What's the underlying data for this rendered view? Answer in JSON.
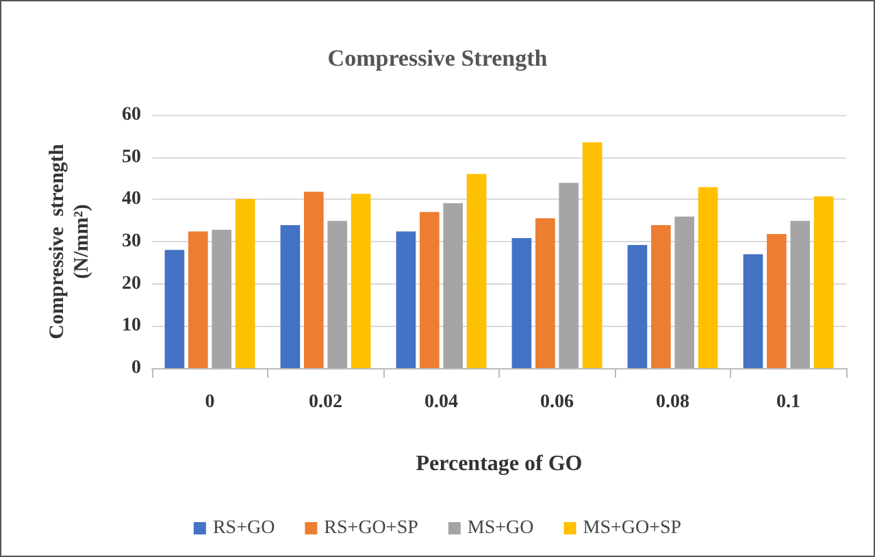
{
  "chart_data": {
    "type": "bar",
    "title": "Compressive Strength",
    "xlabel": "Percentage of GO",
    "ylabel": "Compressive  strength\n(N/mm²)",
    "categories": [
      "0",
      "0.02",
      "0.04",
      "0.06",
      "0.08",
      "0.1"
    ],
    "series": [
      {
        "name": "RS+GO",
        "color": "#4472c4",
        "values": [
          28,
          33.9,
          32.4,
          30.8,
          29.2,
          27
        ]
      },
      {
        "name": "RS+GO+SP",
        "color": "#ed7d31",
        "values": [
          32.4,
          41.8,
          37,
          35.5,
          33.9,
          31.8
        ]
      },
      {
        "name": "MS+GO",
        "color": "#a5a5a5",
        "values": [
          32.8,
          34.9,
          39.1,
          43.9,
          35.9,
          34.9
        ]
      },
      {
        "name": "MS+GO+SP",
        "color": "#ffc000",
        "values": [
          40.1,
          41.3,
          46,
          53.5,
          42.9,
          40.7
        ]
      }
    ],
    "ylim": [
      0,
      60
    ],
    "yticks": [
      0,
      10,
      20,
      30,
      40,
      50,
      60
    ],
    "grid": "y",
    "legend": "bottom"
  }
}
